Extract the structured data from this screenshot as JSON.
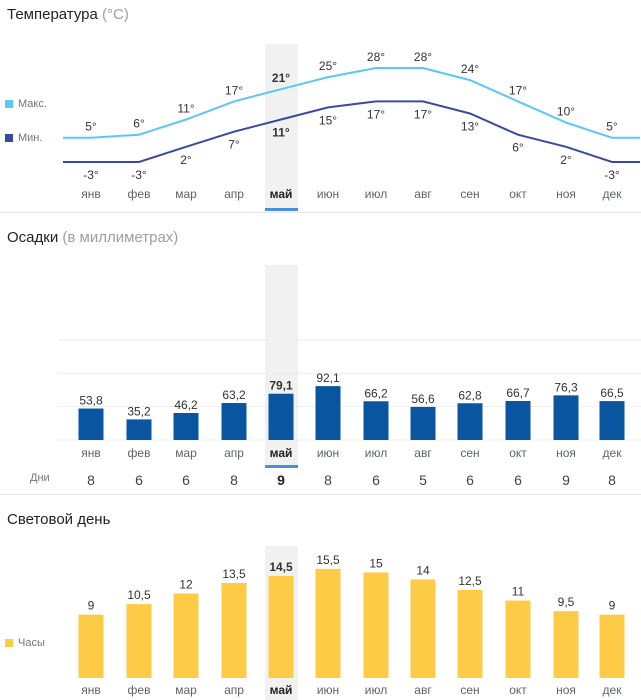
{
  "months": [
    "янв",
    "фев",
    "мар",
    "апр",
    "май",
    "июн",
    "июл",
    "авг",
    "сен",
    "окт",
    "ноя",
    "дек"
  ],
  "selected_index": 4,
  "temperature": {
    "title": "Температура",
    "subtitle": "(°C)",
    "legend_max": "Макс.",
    "legend_min": "Мин.",
    "max_color": "#5bc8f0",
    "min_color": "#3b4aa0"
  },
  "precipitation": {
    "title": "Осадки",
    "subtitle": "(в миллиметрах)",
    "days_label": "Дни",
    "days": [
      "8",
      "6",
      "6",
      "8",
      "9",
      "8",
      "6",
      "5",
      "6",
      "6",
      "9",
      "8"
    ],
    "bar_color": "#0a55a0"
  },
  "daylight": {
    "title": "Световой день",
    "legend": "Часы",
    "bar_color": "#fdcb45"
  },
  "chart_data": [
    {
      "type": "line",
      "title": "Температура (°C)",
      "categories": [
        "янв",
        "фев",
        "мар",
        "апр",
        "май",
        "июн",
        "июл",
        "авг",
        "сен",
        "окт",
        "ноя",
        "дек"
      ],
      "series": [
        {
          "name": "Макс.",
          "values": [
            5,
            6,
            11,
            17,
            21,
            25,
            28,
            28,
            24,
            17,
            10,
            5
          ],
          "labels": [
            "5°",
            "6°",
            "11°",
            "17°",
            "21°",
            "25°",
            "28°",
            "28°",
            "24°",
            "17°",
            "10°",
            "5°"
          ]
        },
        {
          "name": "Мин.",
          "values": [
            -3,
            -3,
            2,
            7,
            11,
            15,
            17,
            17,
            13,
            6,
            2,
            -3
          ],
          "labels": [
            "-3°",
            "-3°",
            "2°",
            "7°",
            "11°",
            "15°",
            "17°",
            "17°",
            "13°",
            "6°",
            "2°",
            "-3°"
          ]
        }
      ]
    },
    {
      "type": "bar",
      "title": "Осадки (в миллиметрах)",
      "categories": [
        "янв",
        "фев",
        "мар",
        "апр",
        "май",
        "июн",
        "июл",
        "авг",
        "сен",
        "окт",
        "ноя",
        "дек"
      ],
      "values": [
        53.8,
        35.2,
        46.2,
        63.2,
        79.1,
        92.1,
        66.2,
        56.6,
        62.8,
        66.7,
        76.3,
        66.5
      ],
      "labels": [
        "53,8",
        "35,2",
        "46,2",
        "63,2",
        "79,1",
        "92,1",
        "66,2",
        "56,6",
        "62,8",
        "66,7",
        "76,3",
        "66,5"
      ],
      "ylim": [
        0,
        300
      ],
      "grid": true
    },
    {
      "type": "bar",
      "title": "Световой день",
      "categories": [
        "янв",
        "фев",
        "мар",
        "апр",
        "май",
        "июн",
        "июл",
        "авг",
        "сен",
        "окт",
        "ноя",
        "дек"
      ],
      "values": [
        9,
        10.5,
        12,
        13.5,
        14.5,
        15.5,
        15,
        14,
        12.5,
        11,
        9.5,
        9
      ],
      "labels": [
        "9",
        "10,5",
        "12",
        "13,5",
        "14,5",
        "15,5",
        "15",
        "14",
        "12,5",
        "11",
        "9,5",
        "9"
      ],
      "ylim": [
        0,
        20
      ]
    }
  ]
}
